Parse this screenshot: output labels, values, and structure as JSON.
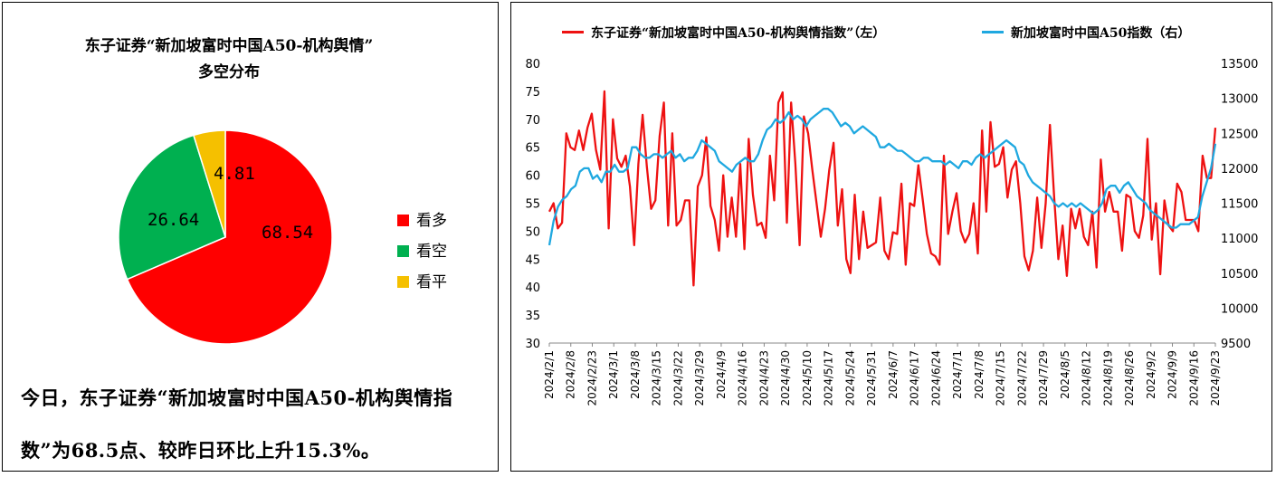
{
  "pie": {
    "title_line1": "东子证券“新加坡富时中国A50-机构舆情”",
    "title_line2": "多空分布",
    "slices": [
      {
        "name": "看多",
        "value": 68.54,
        "label": "68.54",
        "color": "#ff0000"
      },
      {
        "name": "看空",
        "value": 26.64,
        "label": "26.64",
        "color": "#00b050"
      },
      {
        "name": "看平",
        "value": 4.81,
        "label": "4.81",
        "color": "#f5c000"
      }
    ]
  },
  "note": {
    "text": "今日，东子证券“新加坡富时中国A50-机构舆情指数”为68.5点、较昨日环比上升15.3%。"
  },
  "chart_data": [
    {
      "type": "pie",
      "title": "东子证券“新加坡富时中国A50-机构舆情”多空分布",
      "categories": [
        "看多",
        "看空",
        "看平"
      ],
      "values": [
        68.54,
        26.64,
        4.81
      ],
      "legend": "right"
    },
    {
      "type": "line",
      "legend": "top",
      "legend_labels": {
        "left": "东子证券“新加坡富时中国A50-机构舆情指数”（左）",
        "right": "新加坡富时中国A50指数（右）"
      },
      "colors": {
        "left": "#ee1111",
        "right": "#1fa8e0"
      },
      "ylim_left": [
        30,
        80
      ],
      "yticks_left": [
        "30",
        "35",
        "40",
        "45",
        "50",
        "55",
        "60",
        "65",
        "70",
        "75",
        "80"
      ],
      "ylim_right": [
        9500,
        13500
      ],
      "yticks_right": [
        "9500",
        "10000",
        "10500",
        "11000",
        "11500",
        "12000",
        "12500",
        "13000",
        "13500"
      ],
      "x_ticks": [
        "2024/2/1",
        "2024/2/8",
        "2024/2/23",
        "2024/3/1",
        "2024/3/8",
        "2024/3/15",
        "2024/3/22",
        "2024/3/29",
        "2024/4/9",
        "2024/4/16",
        "2024/4/23",
        "2024/4/30",
        "2024/5/10",
        "2024/5/17",
        "2024/5/24",
        "2024/5/31",
        "2024/6/7",
        "2024/6/17",
        "2024/6/24",
        "2024/7/1",
        "2024/7/8",
        "2024/7/15",
        "2024/7/22",
        "2024/7/29",
        "2024/8/5",
        "2024/8/12",
        "2024/8/19",
        "2024/8/26",
        "2024/9/2",
        "2024/9/9",
        "2024/9/16",
        "2024/9/23"
      ],
      "series": [
        {
          "name": "东子证券“新加坡富时中国A50-机构舆情指数”（左）",
          "axis": "left",
          "values": [
            53.5,
            55,
            50.5,
            51.5,
            67.5,
            65,
            64.5,
            68,
            64.5,
            68.5,
            71,
            64.5,
            61,
            75,
            50.5,
            70,
            63,
            61.5,
            63.5,
            58,
            47.5,
            62,
            70.8,
            61.5,
            54,
            55.5,
            67,
            73,
            51,
            67.5,
            51,
            52,
            55.5,
            55.5,
            40.3,
            58,
            60,
            66.8,
            54.5,
            52,
            46.5,
            60,
            49,
            56,
            49,
            62,
            46.8,
            66.5,
            56.5,
            51,
            51.5,
            48.8,
            63.5,
            55.5,
            73,
            74.8,
            51.5,
            73,
            62,
            47.5,
            70.5,
            67.5,
            61,
            55,
            49,
            54,
            61,
            65.8,
            51,
            57.5,
            45,
            42.5,
            56.5,
            45,
            53.5,
            47,
            47.5,
            48,
            56,
            46.5,
            45,
            49.8,
            49.5,
            58.5,
            44,
            55,
            54.5,
            61.8,
            55.8,
            49.5,
            46,
            45.5,
            44,
            63.5,
            49.5,
            53.5,
            56.8,
            50,
            48,
            49.5,
            55,
            46,
            68,
            53.5,
            69.5,
            61.5,
            62,
            65,
            56,
            61,
            62.5,
            55,
            45.5,
            43,
            46.5,
            56,
            47,
            55,
            69,
            56,
            45,
            51,
            42,
            54,
            50.5,
            54,
            49,
            47.5,
            53.5,
            43.5,
            62.8,
            53.5,
            57,
            53.5,
            53.5,
            46.5,
            56.5,
            56,
            50,
            48.8,
            52.8,
            66.5,
            48.5,
            55,
            42.3,
            55.5,
            51,
            50,
            58.5,
            57,
            52,
            52,
            52,
            50,
            63.5,
            59.5,
            59.5,
            68.5
          ]
        },
        {
          "name": "新加坡富时中国A50指数（右）",
          "axis": "right",
          "values": [
            10900,
            11250,
            11450,
            11550,
            11600,
            11700,
            11750,
            11950,
            12000,
            12000,
            11850,
            11900,
            11800,
            11950,
            11950,
            12050,
            11950,
            11950,
            12000,
            12300,
            12300,
            12200,
            12150,
            12150,
            12200,
            12200,
            12150,
            12200,
            12250,
            12150,
            12200,
            12100,
            12150,
            12150,
            12250,
            12400,
            12350,
            12300,
            12250,
            12100,
            12050,
            12000,
            11950,
            12050,
            12100,
            12150,
            12100,
            12100,
            12200,
            12400,
            12550,
            12600,
            12700,
            12650,
            12700,
            12800,
            12700,
            12750,
            12700,
            12600,
            12700,
            12750,
            12800,
            12850,
            12850,
            12800,
            12700,
            12600,
            12650,
            12600,
            12500,
            12550,
            12600,
            12550,
            12500,
            12450,
            12300,
            12300,
            12350,
            12300,
            12250,
            12250,
            12200,
            12150,
            12100,
            12100,
            12150,
            12150,
            12100,
            12100,
            12100,
            12050,
            12100,
            12050,
            12000,
            12100,
            12100,
            12050,
            12150,
            12200,
            12150,
            12200,
            12250,
            12300,
            12350,
            12400,
            12350,
            12300,
            12100,
            12050,
            11900,
            11800,
            11750,
            11700,
            11650,
            11600,
            11500,
            11450,
            11500,
            11450,
            11500,
            11450,
            11500,
            11450,
            11400,
            11350,
            11400,
            11500,
            11700,
            11750,
            11750,
            11650,
            11750,
            11800,
            11700,
            11600,
            11550,
            11500,
            11400,
            11350,
            11300,
            11250,
            11200,
            11150,
            11150,
            11200,
            11200,
            11200,
            11250,
            11300,
            11600,
            11800,
            12000,
            12350
          ]
        }
      ]
    }
  ]
}
